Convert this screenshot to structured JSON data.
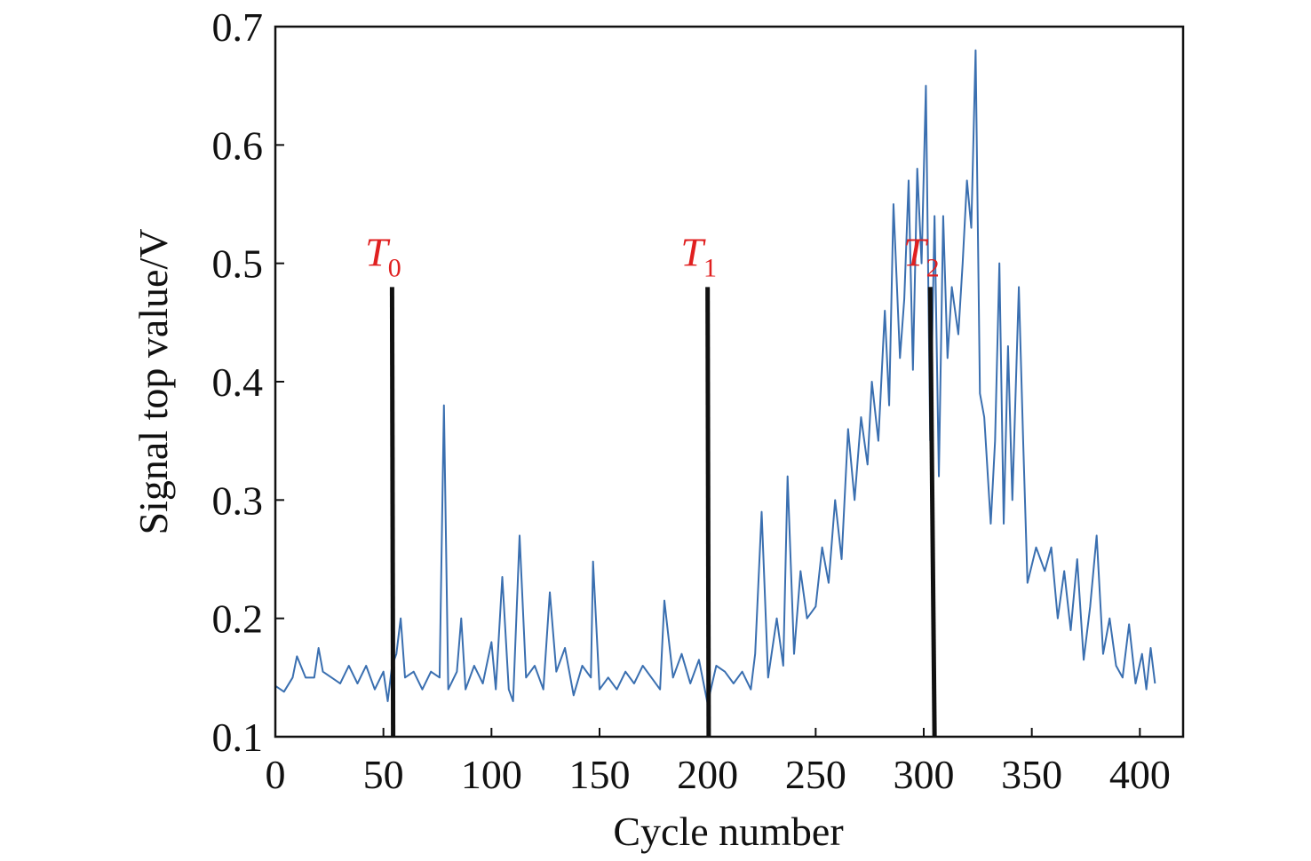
{
  "chart_data": {
    "type": "line",
    "x_label": "Cycle number",
    "y_label": "Signal top value/V",
    "xlim": [
      0,
      420
    ],
    "ylim": [
      0.1,
      0.7
    ],
    "xticks": [
      0,
      50,
      100,
      150,
      200,
      250,
      300,
      350,
      400
    ],
    "yticks": [
      0.1,
      0.2,
      0.3,
      0.4,
      0.5,
      0.6,
      0.7
    ],
    "series": [
      {
        "color": "#3a6fb0",
        "x": [
          0,
          4,
          8,
          10,
          14,
          18,
          20,
          22,
          26,
          30,
          34,
          38,
          42,
          46,
          50,
          52,
          54,
          56,
          58,
          60,
          64,
          68,
          72,
          76,
          78,
          80,
          84,
          86,
          88,
          92,
          96,
          100,
          102,
          105,
          108,
          110,
          113,
          116,
          120,
          124,
          127,
          130,
          134,
          138,
          142,
          146,
          147,
          150,
          154,
          158,
          162,
          166,
          170,
          174,
          178,
          180,
          184,
          188,
          192,
          196,
          200,
          204,
          208,
          212,
          216,
          220,
          222,
          225,
          228,
          232,
          235,
          237,
          240,
          243,
          246,
          250,
          253,
          256,
          259,
          262,
          265,
          268,
          271,
          274,
          276,
          279,
          282,
          284,
          286,
          289,
          291,
          293,
          295,
          297,
          299,
          301,
          303,
          305,
          307,
          309,
          311,
          313,
          316,
          318,
          320,
          322,
          324,
          326,
          328,
          331,
          333,
          335,
          337,
          339,
          341,
          344,
          346,
          348,
          352,
          356,
          359,
          362,
          365,
          368,
          371,
          374,
          377,
          380,
          383,
          386,
          389,
          392,
          395,
          398,
          401,
          403,
          405,
          407
        ],
        "values": [
          0.143,
          0.138,
          0.15,
          0.168,
          0.15,
          0.15,
          0.175,
          0.155,
          0.15,
          0.145,
          0.16,
          0.145,
          0.16,
          0.14,
          0.155,
          0.13,
          0.16,
          0.17,
          0.2,
          0.15,
          0.155,
          0.14,
          0.155,
          0.15,
          0.38,
          0.14,
          0.155,
          0.2,
          0.14,
          0.16,
          0.145,
          0.18,
          0.14,
          0.235,
          0.14,
          0.13,
          0.27,
          0.15,
          0.16,
          0.14,
          0.222,
          0.155,
          0.175,
          0.135,
          0.16,
          0.15,
          0.248,
          0.14,
          0.15,
          0.14,
          0.155,
          0.145,
          0.16,
          0.15,
          0.14,
          0.215,
          0.15,
          0.17,
          0.145,
          0.165,
          0.128,
          0.16,
          0.155,
          0.145,
          0.155,
          0.14,
          0.17,
          0.29,
          0.15,
          0.2,
          0.16,
          0.32,
          0.17,
          0.24,
          0.2,
          0.21,
          0.26,
          0.23,
          0.3,
          0.25,
          0.36,
          0.3,
          0.37,
          0.33,
          0.4,
          0.35,
          0.46,
          0.38,
          0.55,
          0.42,
          0.47,
          0.57,
          0.41,
          0.58,
          0.5,
          0.65,
          0.35,
          0.54,
          0.32,
          0.54,
          0.42,
          0.48,
          0.44,
          0.5,
          0.57,
          0.53,
          0.68,
          0.39,
          0.37,
          0.28,
          0.35,
          0.5,
          0.28,
          0.43,
          0.3,
          0.48,
          0.35,
          0.23,
          0.26,
          0.24,
          0.26,
          0.2,
          0.24,
          0.19,
          0.25,
          0.165,
          0.21,
          0.27,
          0.17,
          0.2,
          0.16,
          0.15,
          0.195,
          0.145,
          0.17,
          0.14,
          0.175,
          0.145
        ]
      }
    ],
    "markers": [
      {
        "name": "T",
        "subscript": "0",
        "x_top": 54,
        "x_bottom": 54.5,
        "y_top": 0.48,
        "color": "#e02020"
      },
      {
        "name": "T",
        "subscript": "1",
        "x_top": 200,
        "x_bottom": 200.5,
        "y_top": 0.48,
        "color": "#e02020"
      },
      {
        "name": "T",
        "subscript": "2",
        "x_top": 303,
        "x_bottom": 305,
        "y_top": 0.48,
        "color": "#e02020"
      }
    ]
  }
}
